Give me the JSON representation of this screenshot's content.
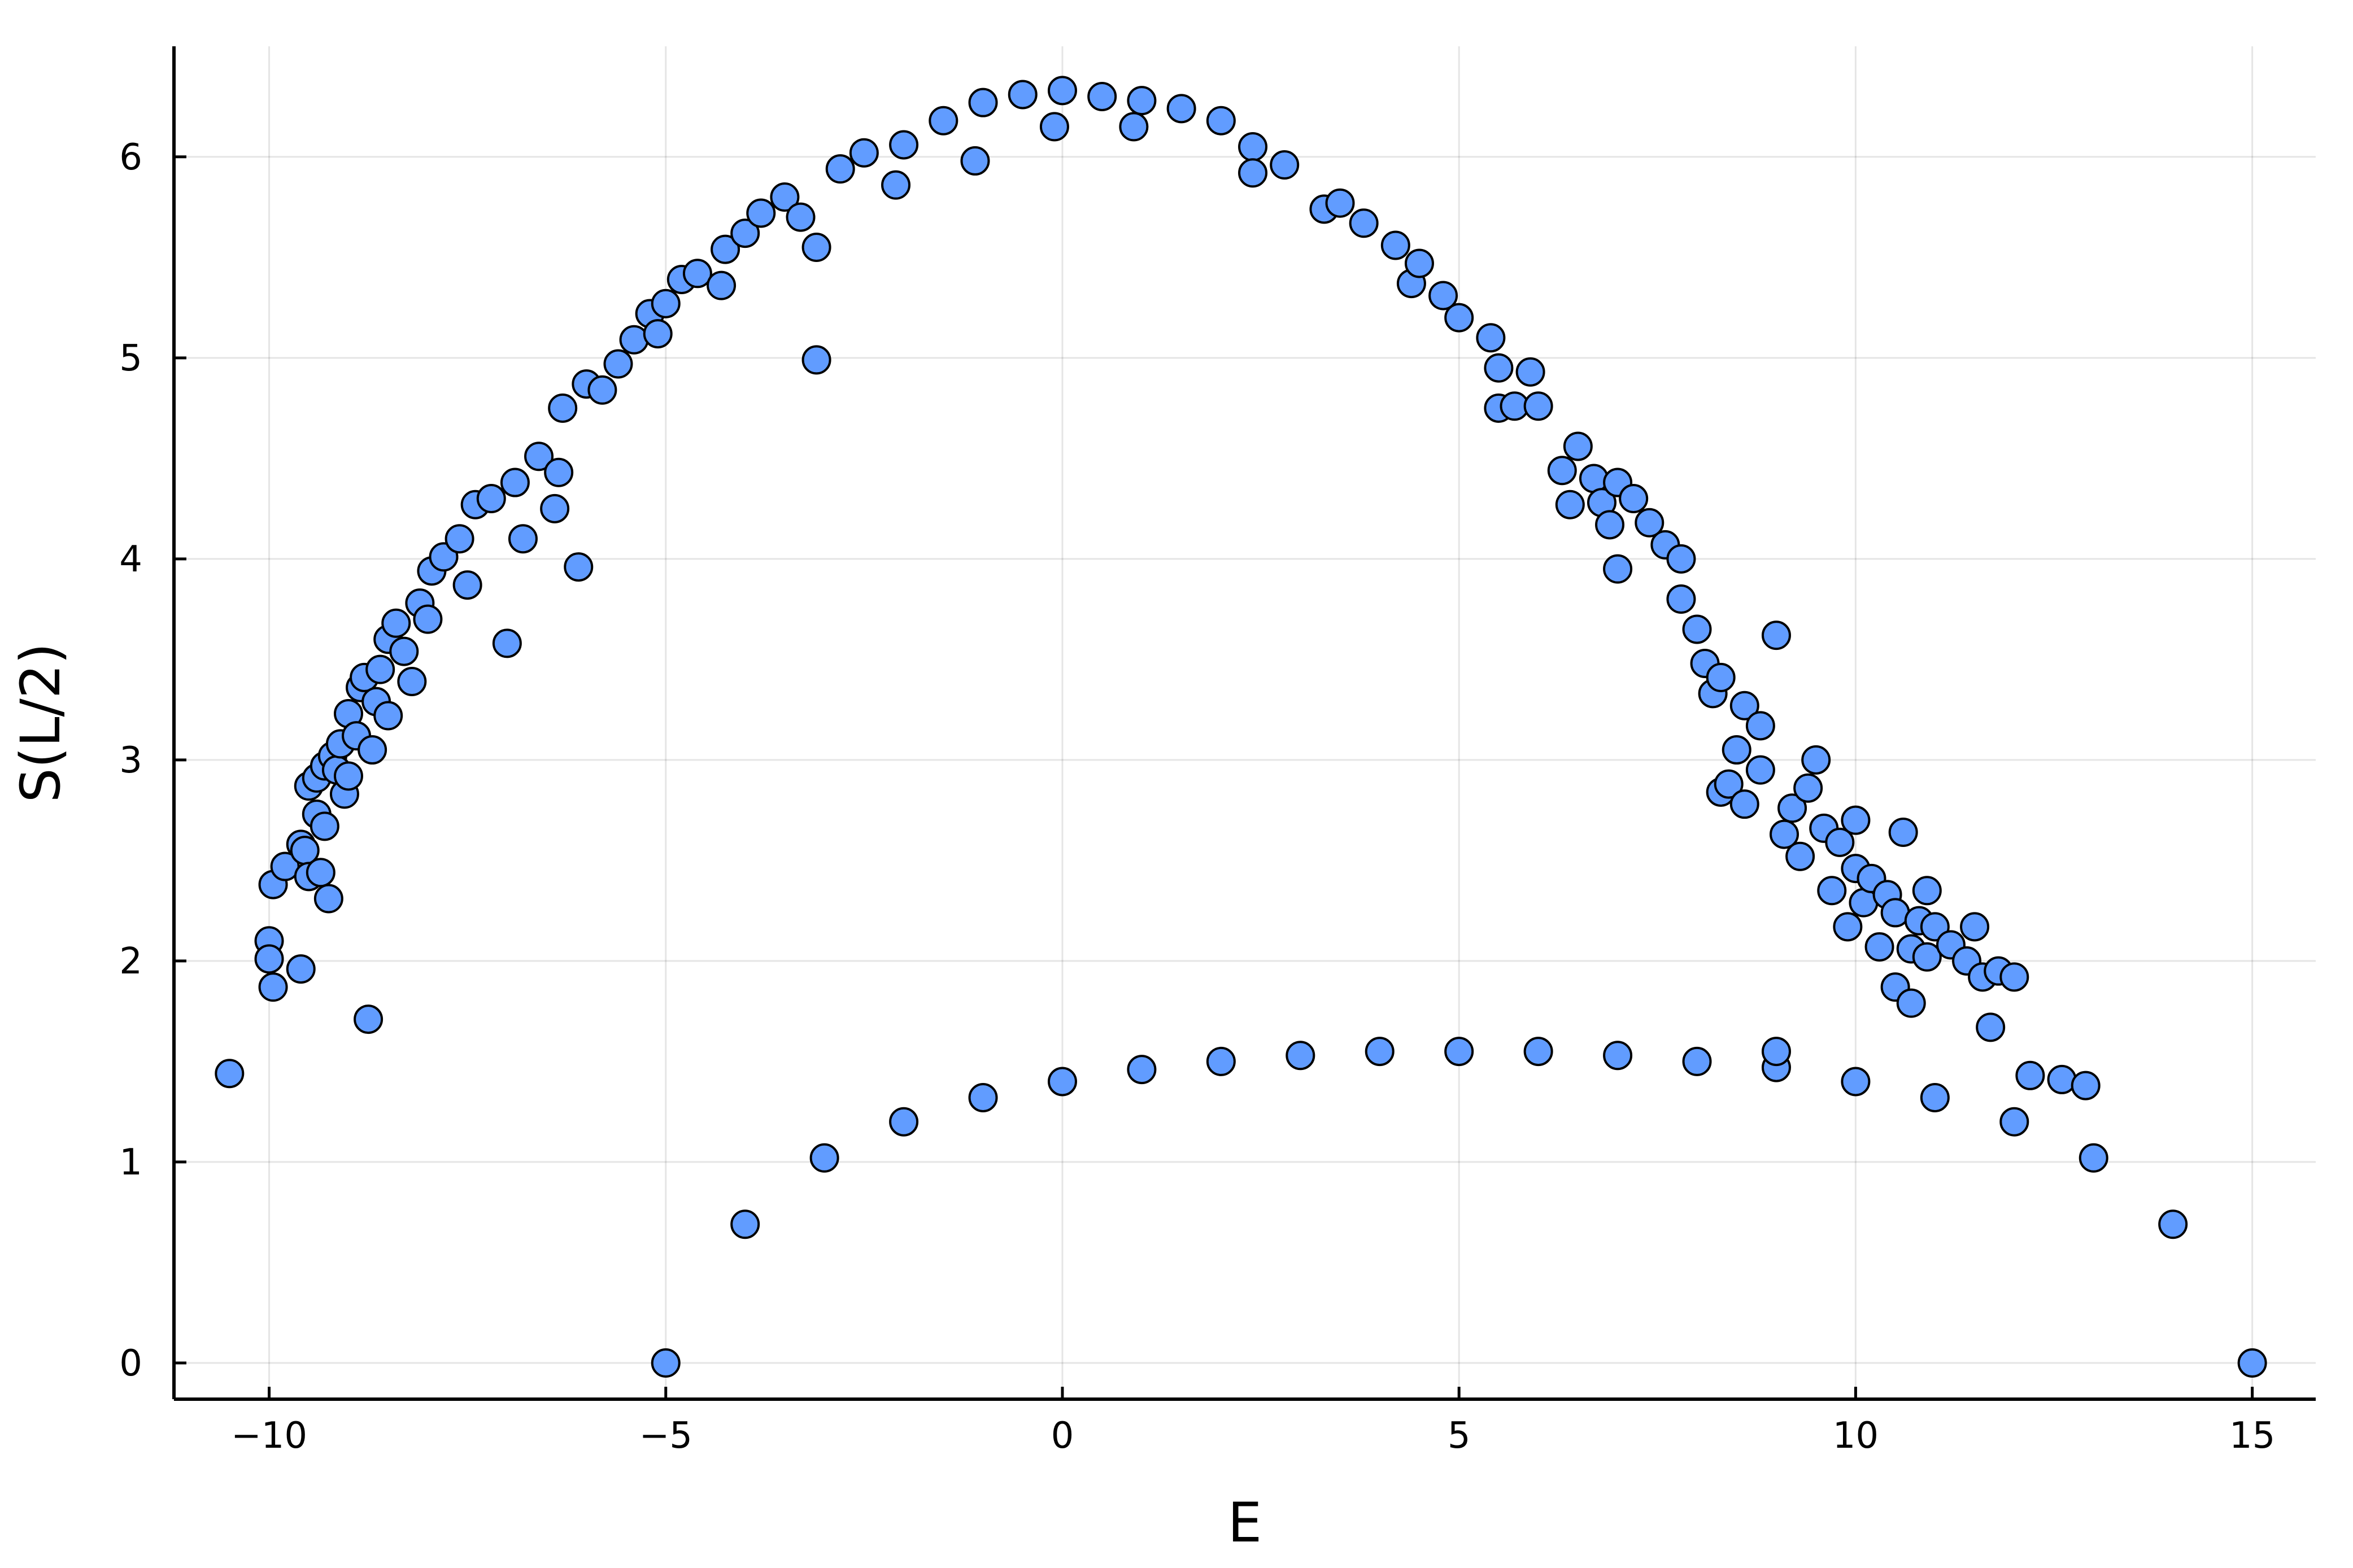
{
  "chart_data": {
    "type": "scatter",
    "title": "",
    "xlabel": "E",
    "ylabel": "S(L/2)",
    "xlim": [
      -11.2,
      15.8
    ],
    "ylim": [
      -0.18,
      6.55
    ],
    "xticks": [
      -10,
      -5,
      0,
      5,
      10,
      15
    ],
    "xtick_labels": [
      "−10",
      "−5",
      "0",
      "5",
      "10",
      "15"
    ],
    "yticks": [
      0,
      1,
      2,
      3,
      4,
      5,
      6
    ],
    "ytick_labels": [
      "0",
      "1",
      "2",
      "3",
      "4",
      "5",
      "6"
    ],
    "grid": true,
    "legend": "none",
    "marker_color": "#619CFF",
    "marker_edge_color": "#000000",
    "background": "#FFFFFF",
    "series": [
      {
        "points": [
          [
            -10.5,
            1.44
          ],
          [
            -10.0,
            2.1
          ],
          [
            -10.0,
            2.01
          ],
          [
            -9.95,
            1.87
          ],
          [
            -9.95,
            2.38
          ],
          [
            -9.8,
            2.47
          ],
          [
            -9.6,
            1.96
          ],
          [
            -9.6,
            2.58
          ],
          [
            -9.55,
            2.55
          ],
          [
            -9.5,
            2.42
          ],
          [
            -9.5,
            2.87
          ],
          [
            -9.4,
            2.73
          ],
          [
            -9.4,
            2.91
          ],
          [
            -9.35,
            2.44
          ],
          [
            -9.3,
            2.67
          ],
          [
            -9.3,
            2.97
          ],
          [
            -9.25,
            2.31
          ],
          [
            -9.2,
            3.02
          ],
          [
            -9.15,
            2.95
          ],
          [
            -9.1,
            3.08
          ],
          [
            -9.05,
            2.83
          ],
          [
            -9.0,
            2.92
          ],
          [
            -9.0,
            3.23
          ],
          [
            -8.9,
            3.12
          ],
          [
            -8.85,
            3.36
          ],
          [
            -8.8,
            3.41
          ],
          [
            -8.75,
            1.71
          ],
          [
            -8.7,
            3.05
          ],
          [
            -8.65,
            3.29
          ],
          [
            -8.6,
            3.45
          ],
          [
            -8.5,
            3.22
          ],
          [
            -8.5,
            3.6
          ],
          [
            -8.4,
            3.68
          ],
          [
            -8.3,
            3.54
          ],
          [
            -8.2,
            3.39
          ],
          [
            -8.1,
            3.78
          ],
          [
            -8.0,
            3.7
          ],
          [
            -7.95,
            3.94
          ],
          [
            -7.8,
            4.01
          ],
          [
            -7.6,
            4.1
          ],
          [
            -7.5,
            3.87
          ],
          [
            -7.4,
            4.27
          ],
          [
            -7.2,
            4.3
          ],
          [
            -7.0,
            3.58
          ],
          [
            -6.9,
            4.38
          ],
          [
            -6.8,
            4.1
          ],
          [
            -6.6,
            4.51
          ],
          [
            -6.4,
            4.25
          ],
          [
            -6.35,
            4.43
          ],
          [
            -6.3,
            4.75
          ],
          [
            -6.1,
            3.96
          ],
          [
            -6.0,
            4.87
          ],
          [
            -5.8,
            4.84
          ],
          [
            -5.6,
            4.97
          ],
          [
            -5.4,
            5.09
          ],
          [
            -5.2,
            5.22
          ],
          [
            -5.1,
            5.12
          ],
          [
            -5.0,
            5.27
          ],
          [
            -5.0,
            0.0
          ],
          [
            -4.8,
            5.39
          ],
          [
            -4.6,
            5.42
          ],
          [
            -4.3,
            5.36
          ],
          [
            -4.25,
            5.54
          ],
          [
            -4.0,
            5.62
          ],
          [
            -3.8,
            5.72
          ],
          [
            -3.5,
            5.8
          ],
          [
            -3.3,
            5.7
          ],
          [
            -3.1,
            5.55
          ],
          [
            -3.1,
            4.99
          ],
          [
            -3.0,
            1.02
          ],
          [
            -4.0,
            0.69
          ],
          [
            -2.8,
            5.94
          ],
          [
            -2.5,
            6.02
          ],
          [
            -2.1,
            5.86
          ],
          [
            -2.0,
            6.06
          ],
          [
            -2.0,
            1.2
          ],
          [
            -1.5,
            6.18
          ],
          [
            -1.1,
            5.98
          ],
          [
            -1.0,
            1.32
          ],
          [
            -1.0,
            6.27
          ],
          [
            -0.5,
            6.31
          ],
          [
            -0.1,
            6.15
          ],
          [
            0.0,
            6.33
          ],
          [
            0.0,
            1.4
          ],
          [
            0.5,
            6.3
          ],
          [
            0.9,
            6.15
          ],
          [
            1.0,
            6.28
          ],
          [
            1.0,
            1.46
          ],
          [
            1.5,
            6.24
          ],
          [
            2.0,
            6.18
          ],
          [
            2.0,
            1.5
          ],
          [
            2.4,
            6.05
          ],
          [
            2.4,
            5.92
          ],
          [
            2.8,
            5.96
          ],
          [
            3.0,
            1.53
          ],
          [
            3.3,
            5.74
          ],
          [
            3.5,
            5.77
          ],
          [
            3.8,
            5.67
          ],
          [
            4.0,
            1.55
          ],
          [
            4.2,
            5.56
          ],
          [
            4.4,
            5.37
          ],
          [
            4.5,
            5.47
          ],
          [
            4.8,
            5.31
          ],
          [
            5.0,
            5.2
          ],
          [
            5.0,
            1.55
          ],
          [
            5.4,
            5.1
          ],
          [
            5.5,
            4.95
          ],
          [
            5.5,
            4.75
          ],
          [
            5.7,
            4.76
          ],
          [
            5.9,
            4.93
          ],
          [
            6.0,
            1.55
          ],
          [
            6.0,
            4.76
          ],
          [
            6.3,
            4.44
          ],
          [
            6.4,
            4.27
          ],
          [
            6.5,
            4.56
          ],
          [
            6.7,
            4.4
          ],
          [
            6.8,
            4.28
          ],
          [
            6.9,
            4.17
          ],
          [
            7.0,
            1.53
          ],
          [
            7.0,
            3.95
          ],
          [
            7.0,
            4.38
          ],
          [
            7.2,
            4.3
          ],
          [
            7.4,
            4.18
          ],
          [
            7.6,
            4.07
          ],
          [
            7.8,
            4.0
          ],
          [
            7.8,
            3.8
          ],
          [
            8.0,
            3.65
          ],
          [
            8.0,
            1.5
          ],
          [
            8.1,
            3.48
          ],
          [
            8.2,
            3.33
          ],
          [
            8.3,
            3.41
          ],
          [
            8.3,
            2.84
          ],
          [
            8.4,
            2.88
          ],
          [
            8.5,
            3.05
          ],
          [
            8.6,
            2.78
          ],
          [
            8.6,
            3.27
          ],
          [
            8.8,
            3.17
          ],
          [
            8.8,
            2.95
          ],
          [
            9.0,
            3.62
          ],
          [
            9.0,
            1.47
          ],
          [
            9.0,
            1.55
          ],
          [
            9.1,
            2.63
          ],
          [
            9.2,
            2.76
          ],
          [
            9.3,
            2.52
          ],
          [
            9.4,
            2.86
          ],
          [
            9.5,
            3.0
          ],
          [
            9.6,
            2.66
          ],
          [
            9.7,
            2.35
          ],
          [
            9.8,
            2.59
          ],
          [
            9.9,
            2.17
          ],
          [
            10.0,
            2.7
          ],
          [
            10.0,
            2.46
          ],
          [
            10.0,
            1.4
          ],
          [
            10.1,
            2.29
          ],
          [
            10.2,
            2.41
          ],
          [
            10.3,
            2.07
          ],
          [
            10.4,
            2.33
          ],
          [
            10.5,
            2.24
          ],
          [
            10.5,
            1.87
          ],
          [
            10.6,
            2.64
          ],
          [
            10.7,
            2.06
          ],
          [
            10.7,
            1.79
          ],
          [
            10.8,
            2.2
          ],
          [
            10.9,
            2.02
          ],
          [
            10.9,
            2.35
          ],
          [
            11.0,
            2.17
          ],
          [
            11.0,
            1.32
          ],
          [
            11.2,
            2.08
          ],
          [
            11.4,
            2.0
          ],
          [
            11.5,
            2.17
          ],
          [
            11.6,
            1.92
          ],
          [
            11.7,
            1.67
          ],
          [
            11.8,
            1.95
          ],
          [
            12.0,
            1.92
          ],
          [
            12.0,
            1.2
          ],
          [
            12.2,
            1.43
          ],
          [
            12.6,
            1.41
          ],
          [
            12.9,
            1.38
          ],
          [
            13.0,
            1.02
          ],
          [
            14.0,
            0.69
          ],
          [
            15.0,
            0.0
          ]
        ]
      }
    ]
  }
}
